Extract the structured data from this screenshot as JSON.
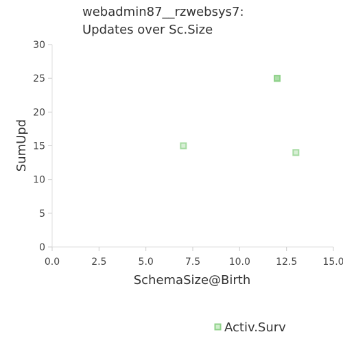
{
  "chart_data": {
    "type": "scatter",
    "title_lines": [
      "webadmin87__rzwebsys7:",
      "Updates over Sc.Size"
    ],
    "xlabel": "SchemaSize@Birth",
    "ylabel": "SumUpd",
    "xlim": [
      0,
      15
    ],
    "ylim": [
      0,
      30
    ],
    "x_ticks": [
      "0.0",
      "2.5",
      "5.0",
      "7.5",
      "10.0",
      "12.5",
      "15.0"
    ],
    "y_ticks": [
      "0",
      "5",
      "10",
      "15",
      "20",
      "25",
      "30"
    ],
    "grid": false,
    "legend_position": "bottom-right",
    "series": [
      {
        "name": "Activ.Surv",
        "color": "#8fd18a",
        "points": [
          {
            "x": 7,
            "y": 15
          },
          {
            "x": 12,
            "y": 25
          },
          {
            "x": 12,
            "y": 25
          },
          {
            "x": 12,
            "y": 25
          },
          {
            "x": 13,
            "y": 14
          }
        ]
      }
    ]
  }
}
